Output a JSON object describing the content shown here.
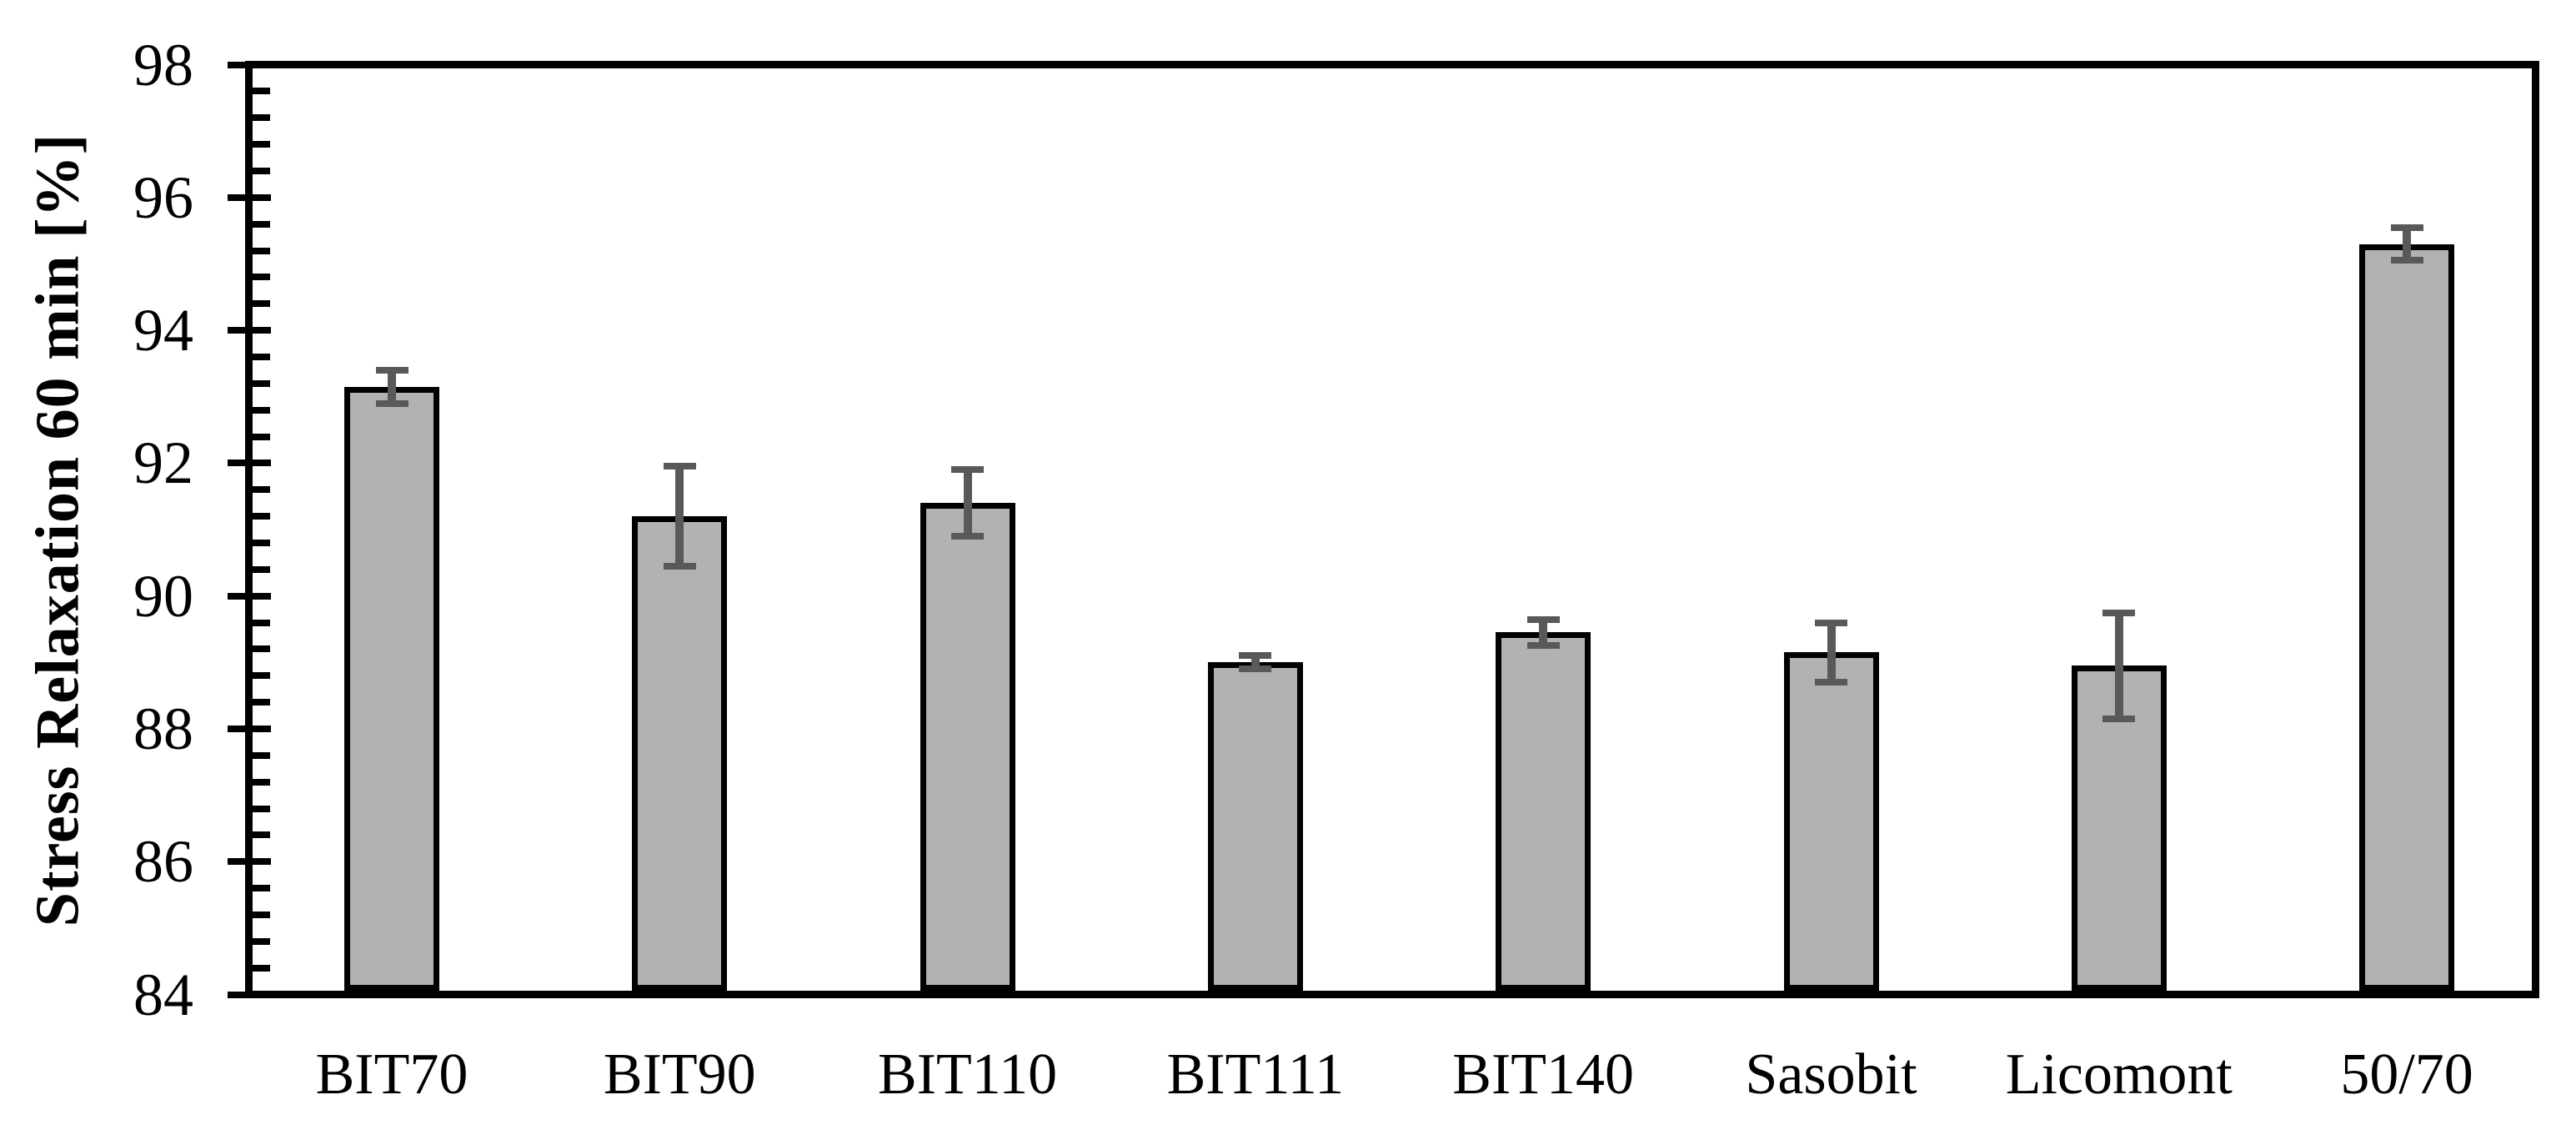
{
  "chart_data": {
    "type": "bar",
    "title": "",
    "xlabel": "",
    "ylabel": "Stress Relaxation 60 min [%]",
    "categories": [
      "BIT70",
      "BIT90",
      "BIT110",
      "BIT111",
      "BIT140",
      "Sasobit",
      "Licomont",
      "50/70"
    ],
    "values": [
      93.15,
      91.2,
      91.4,
      89.0,
      89.45,
      89.15,
      88.95,
      95.3
    ],
    "error_bars": [
      0.25,
      0.75,
      0.5,
      0.1,
      0.2,
      0.45,
      0.8,
      0.25
    ],
    "ylim": [
      84,
      98
    ],
    "y_major_unit": 2,
    "y_minor_unit": 0.4,
    "y_tick_labels": [
      "84",
      "86",
      "88",
      "90",
      "92",
      "94",
      "96",
      "98"
    ],
    "grid": "off",
    "legend": "none",
    "colors": {
      "bar_fill": "#b2b2b2",
      "bar_border": "#000000",
      "error_bar": "#595959",
      "axis": "#000000",
      "background": "#ffffff"
    }
  }
}
